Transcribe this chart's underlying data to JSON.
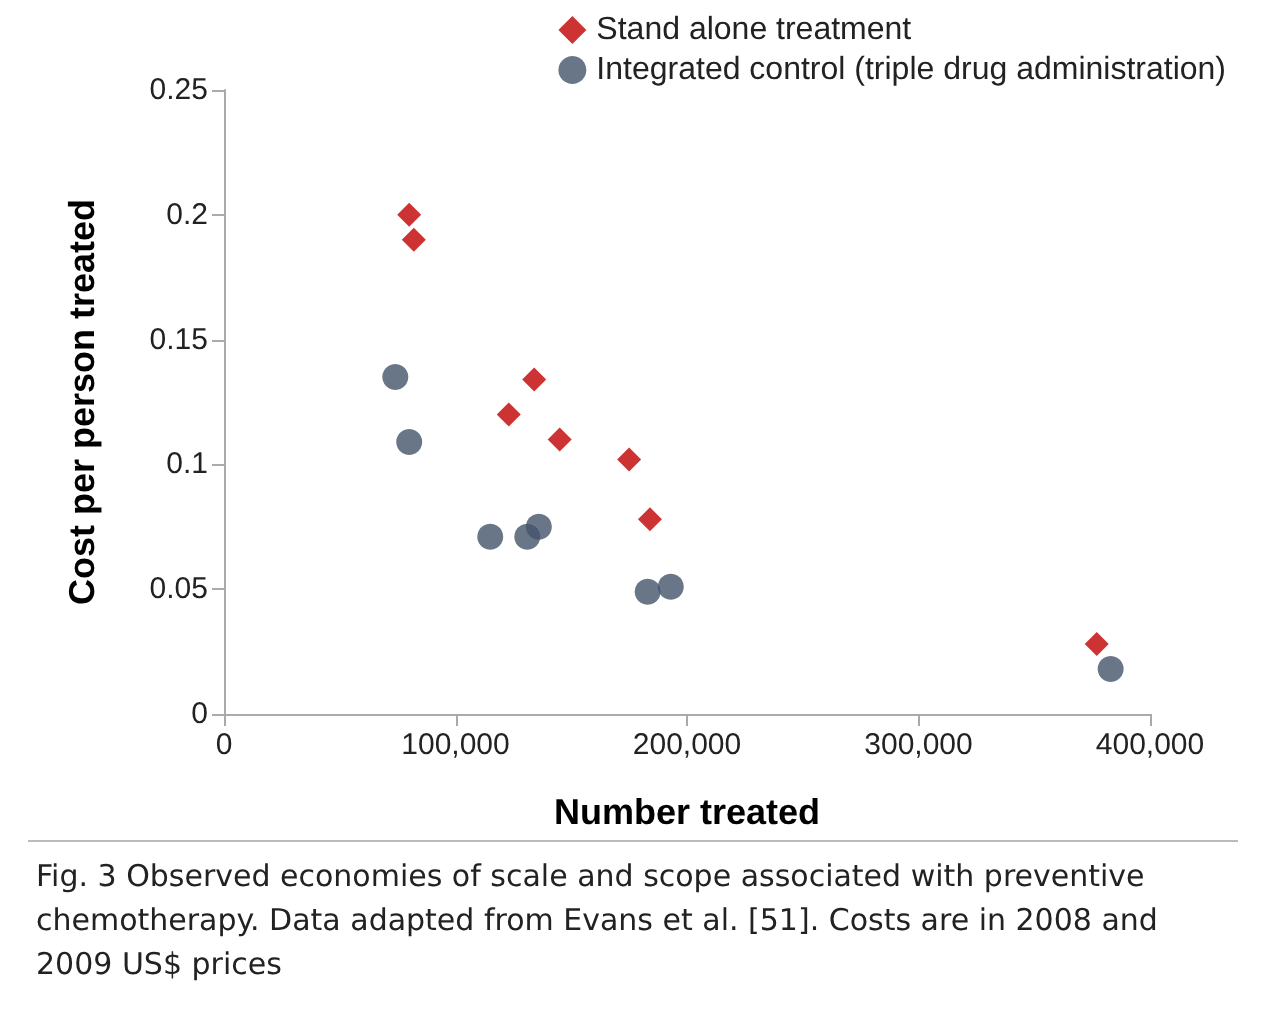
{
  "chart_data": {
    "type": "scatter",
    "xlabel": "Number treated",
    "ylabel": "Cost per person treated",
    "xlim": [
      0,
      400000
    ],
    "xticks": [
      {
        "value": 0,
        "label": "0"
      },
      {
        "value": 100000,
        "label": "100,000"
      },
      {
        "value": 200000,
        "label": "200,000"
      },
      {
        "value": 300000,
        "label": "300,000"
      },
      {
        "value": 400000,
        "label": "400,000"
      }
    ],
    "ylim": [
      0,
      0.25
    ],
    "yticks": [
      0,
      0.05,
      0.1,
      0.15,
      0.2,
      0.25
    ],
    "grid": false,
    "legend": "top right",
    "series": [
      {
        "name": "Stand alone treatment",
        "color": "#c00000",
        "marker": "diamond",
        "x": [
          80000,
          82000,
          134000,
          123000,
          145000,
          175000,
          184000,
          377000
        ],
        "values": [
          0.2,
          0.19,
          0.134,
          0.12,
          0.11,
          0.102,
          0.078,
          0.028
        ]
      },
      {
        "name": "Integrated control (triple drug administration)",
        "color": "#44546a",
        "marker": "circle",
        "x": [
          74000,
          80000,
          115000,
          131000,
          136000,
          183000,
          193000,
          383000
        ],
        "values": [
          0.135,
          0.109,
          0.071,
          0.071,
          0.075,
          0.049,
          0.051,
          0.018
        ]
      }
    ],
    "annotations": [
      "Fig. 3 Observed economies of scale and scope associated with preventive chemotherapy. Data adapted from Evans et al. [51]. Costs are in 2008 and 2009 US$ prices"
    ]
  }
}
